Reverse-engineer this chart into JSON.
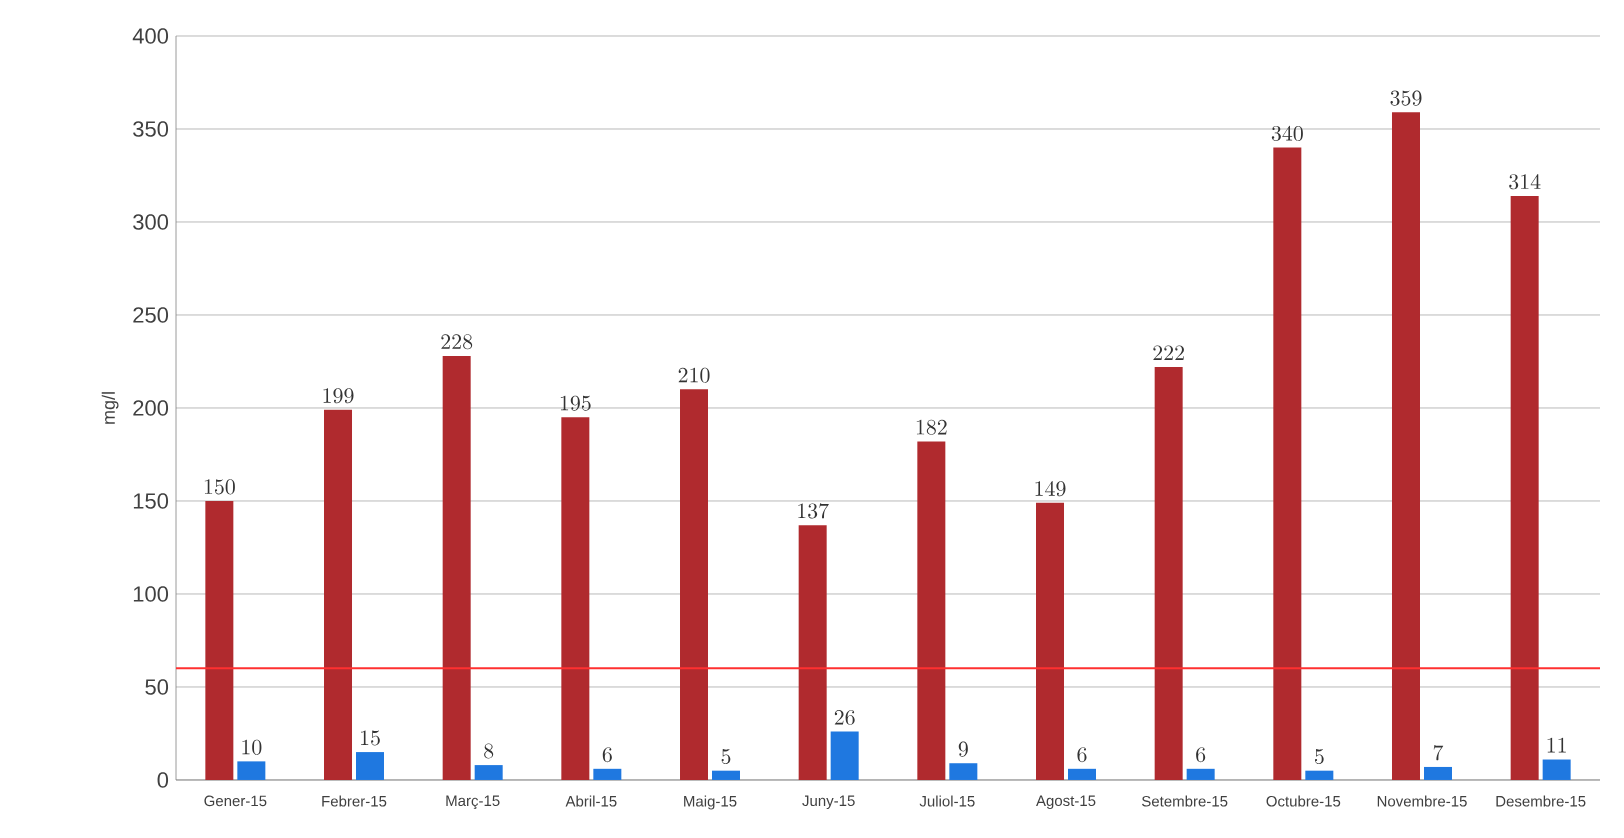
{
  "chart_data": {
    "type": "bar",
    "ylabel": "mg/l",
    "categories": [
      "Gener-15",
      "Febrer-15",
      "Març-15",
      "Abril-15",
      "Maig-15",
      "Juny-15",
      "Juliol-15",
      "Agost-15",
      "Setembre-15",
      "Octubre-15",
      "Novembre-15",
      "Desembre-15"
    ],
    "series": [
      {
        "color": "#b02a2e",
        "values": [
          150,
          199,
          228,
          195,
          210,
          137,
          182,
          149,
          222,
          340,
          359,
          314
        ]
      },
      {
        "color": "#1f78e0",
        "values": [
          10,
          15,
          8,
          6,
          5,
          26,
          9,
          6,
          6,
          5,
          7,
          11
        ]
      }
    ],
    "ylim": [
      0,
      400
    ],
    "yticks": [
      0,
      50,
      100,
      150,
      200,
      250,
      300,
      350,
      400
    ],
    "grid": "y",
    "data_labels": true,
    "ref_lines": [
      {
        "axis": "y",
        "value": 60,
        "color": "#ff3030"
      }
    ]
  }
}
